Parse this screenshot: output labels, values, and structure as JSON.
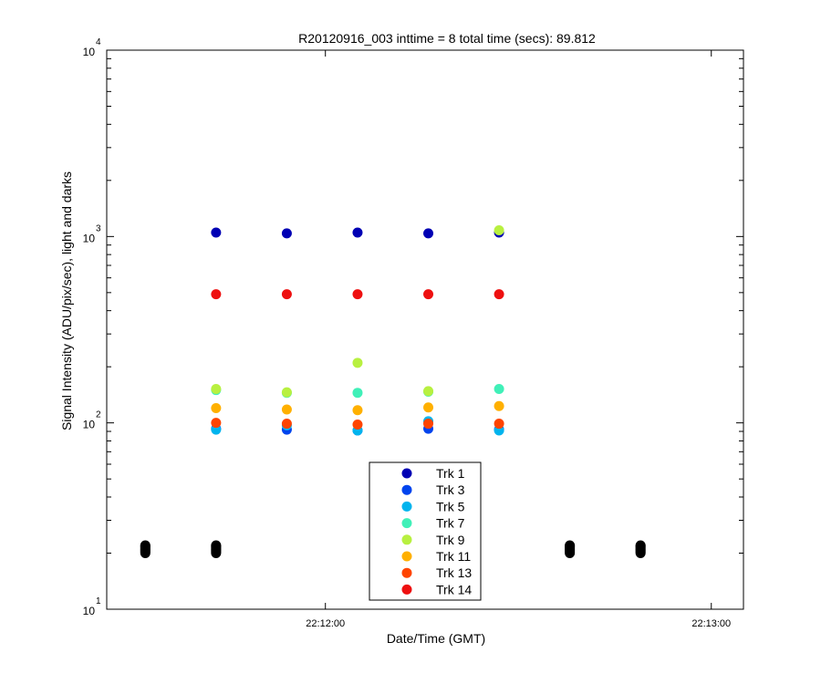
{
  "chart_data": {
    "type": "scatter",
    "title": "R20120916_003 inttime = 8 total time (secs): 89.812",
    "xlabel": "Date/Time (GMT)",
    "ylabel": "Signal Intensity (ADU/pix/sec), light and darks",
    "y_scale": "log",
    "ylim": [
      10,
      10000
    ],
    "xlim": [
      "22:11:26",
      "22:13:05"
    ],
    "x_ticks": [
      {
        "value": "22:12:00",
        "label": "22:12:00"
      },
      {
        "value": "22:13:00",
        "label": "22:13:00"
      }
    ],
    "y_ticks": [
      {
        "value": 10,
        "base": "10",
        "exp": "1"
      },
      {
        "value": 100,
        "base": "10",
        "exp": "2"
      },
      {
        "value": 1000,
        "base": "10",
        "exp": "3"
      },
      {
        "value": 10000,
        "base": "10",
        "exp": "4"
      }
    ],
    "grid": false,
    "legend_position": "bottom-center",
    "series": [
      {
        "name": "Trk 1",
        "color": "#0000b4",
        "x": [
          "22:11:43",
          "22:11:54",
          "22:12:05",
          "22:12:16",
          "22:12:27"
        ],
        "y": [
          1050,
          1040,
          1050,
          1040,
          1050
        ]
      },
      {
        "name": "Trk 3",
        "color": "#0044ee",
        "x": [
          "22:11:43",
          "22:11:54",
          "22:12:05",
          "22:12:16",
          "22:12:27"
        ],
        "y": [
          93,
          92,
          91,
          93,
          92
        ]
      },
      {
        "name": "Trk 5",
        "color": "#00b4ee",
        "x": [
          "22:11:43",
          "22:11:54",
          "22:12:05",
          "22:12:16",
          "22:12:27"
        ],
        "y": [
          92,
          97,
          91,
          102,
          91
        ]
      },
      {
        "name": "Trk 7",
        "color": "#40f0b8",
        "x": [
          "22:11:43",
          "22:11:54",
          "22:12:05",
          "22:12:16",
          "22:12:27"
        ],
        "y": [
          150,
          145,
          145,
          147,
          152
        ]
      },
      {
        "name": "Trk 9",
        "color": "#b8f040",
        "x": [
          "22:11:43",
          "22:11:54",
          "22:12:05",
          "22:12:16",
          "22:12:27"
        ],
        "y": [
          152,
          146,
          210,
          148,
          1080
        ]
      },
      {
        "name": "Trk 11",
        "color": "#ffb000",
        "x": [
          "22:11:43",
          "22:11:54",
          "22:12:05",
          "22:12:16",
          "22:12:27"
        ],
        "y": [
          120,
          118,
          117,
          121,
          123
        ]
      },
      {
        "name": "Trk 13",
        "color": "#ff4400",
        "x": [
          "22:11:43",
          "22:11:54",
          "22:12:05",
          "22:12:16",
          "22:12:27"
        ],
        "y": [
          100,
          99,
          98,
          99,
          99
        ]
      },
      {
        "name": "Trk 14",
        "color": "#ee1010",
        "x": [
          "22:11:43",
          "22:11:54",
          "22:12:05",
          "22:12:16",
          "22:12:27"
        ],
        "y": [
          490,
          490,
          490,
          490,
          490
        ]
      }
    ],
    "darks": {
      "color": "#000000",
      "x": [
        "22:11:32",
        "22:11:32",
        "22:11:32",
        "22:11:32",
        "22:11:32",
        "22:11:32",
        "22:11:32",
        "22:11:32",
        "22:11:43",
        "22:11:43",
        "22:11:43",
        "22:11:43",
        "22:11:43",
        "22:11:43",
        "22:11:43",
        "22:11:43",
        "22:12:38",
        "22:12:38",
        "22:12:38",
        "22:12:38",
        "22:12:38",
        "22:12:38",
        "22:12:38",
        "22:12:38",
        "22:12:49",
        "22:12:49",
        "22:12:49",
        "22:12:49",
        "22:12:49",
        "22:12:49",
        "22:12:49",
        "22:12:49"
      ],
      "y": [
        20.0,
        20.3,
        20.6,
        20.9,
        21.2,
        21.5,
        21.8,
        22.0,
        20.0,
        20.3,
        20.6,
        20.9,
        21.2,
        21.5,
        21.8,
        22.0,
        20.0,
        20.3,
        20.6,
        20.9,
        21.2,
        21.5,
        21.8,
        22.0,
        20.0,
        20.3,
        20.6,
        20.9,
        21.2,
        21.5,
        21.8,
        22.0
      ]
    }
  }
}
